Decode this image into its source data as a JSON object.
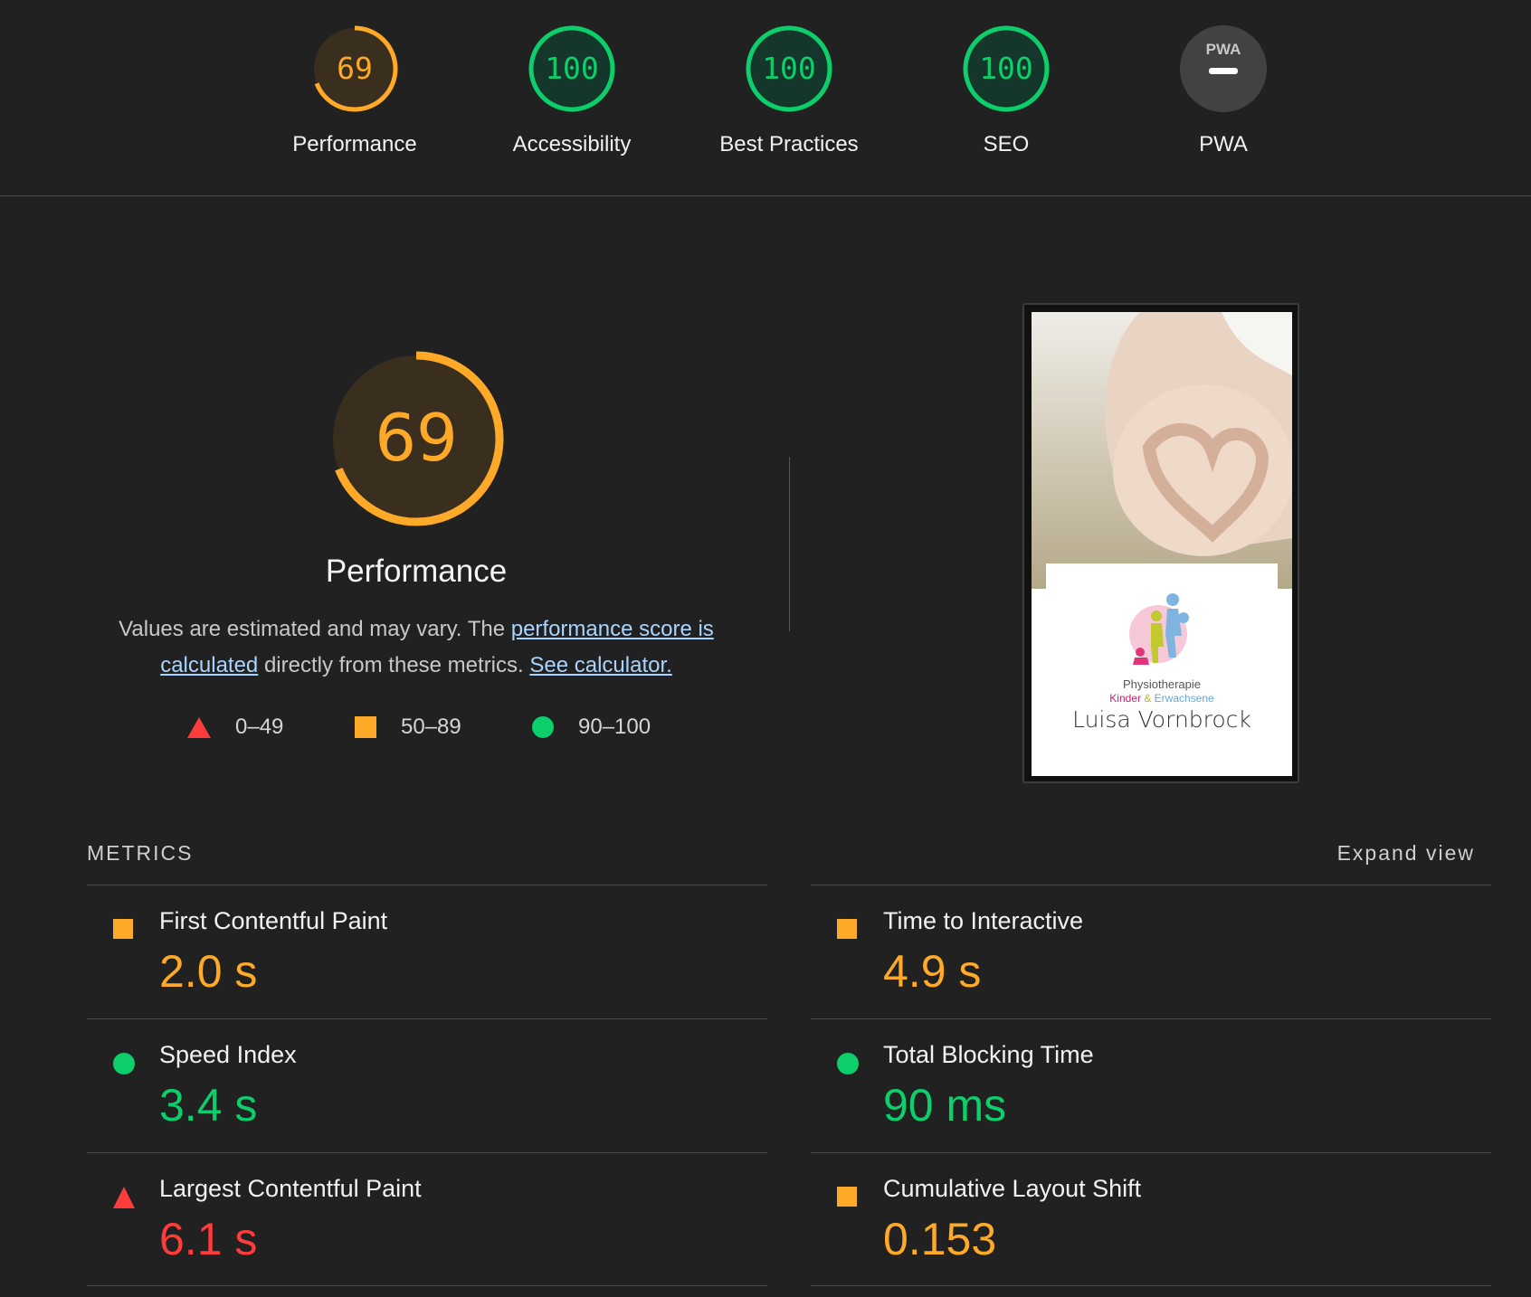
{
  "scores": [
    {
      "label": "Performance",
      "value": "69",
      "score": 0.69,
      "status": "average"
    },
    {
      "label": "Accessibility",
      "value": "100",
      "score": 1.0,
      "status": "pass"
    },
    {
      "label": "Best Practices",
      "value": "100",
      "score": 1.0,
      "status": "pass"
    },
    {
      "label": "SEO",
      "value": "100",
      "score": 1.0,
      "status": "pass"
    },
    {
      "label": "PWA",
      "value": "PWA",
      "score": null,
      "status": "na"
    }
  ],
  "main": {
    "score_value": "69",
    "score": 0.69,
    "title": "Performance",
    "desc_prefix": "Values are estimated and may vary. The ",
    "desc_link1": "performance score is calculated",
    "desc_mid": " directly from these metrics. ",
    "desc_link2": "See calculator."
  },
  "legend": [
    {
      "range": "0–49",
      "icon": "red-triangle-icon"
    },
    {
      "range": "50–89",
      "icon": "orange-square-icon"
    },
    {
      "range": "90–100",
      "icon": "green-circle-icon"
    }
  ],
  "screenshot": {
    "line1": "Physiotherapie",
    "line2a": "Kinder",
    "line2b": "&",
    "line2c": "Erwachsene",
    "line3": "Luisa Vornbrock"
  },
  "metrics_section": {
    "title": "METRICS",
    "expand_label": "Expand view"
  },
  "metrics": [
    {
      "name": "First Contentful Paint",
      "value": "2.0 s",
      "status": "average"
    },
    {
      "name": "Time to Interactive",
      "value": "4.9 s",
      "status": "average"
    },
    {
      "name": "Speed Index",
      "value": "3.4 s",
      "status": "pass"
    },
    {
      "name": "Total Blocking Time",
      "value": "90 ms",
      "status": "pass"
    },
    {
      "name": "Largest Contentful Paint",
      "value": "6.1 s",
      "status": "fail"
    },
    {
      "name": "Cumulative Layout Shift",
      "value": "0.153",
      "status": "average"
    }
  ],
  "colors": {
    "pass": "#0ccf6b",
    "average": "#ffa928",
    "fail": "#ff3b3b",
    "pass_bg": "#15362a",
    "average_bg": "#3a2f1f",
    "na_bg": "#424242",
    "background": "#212121"
  }
}
